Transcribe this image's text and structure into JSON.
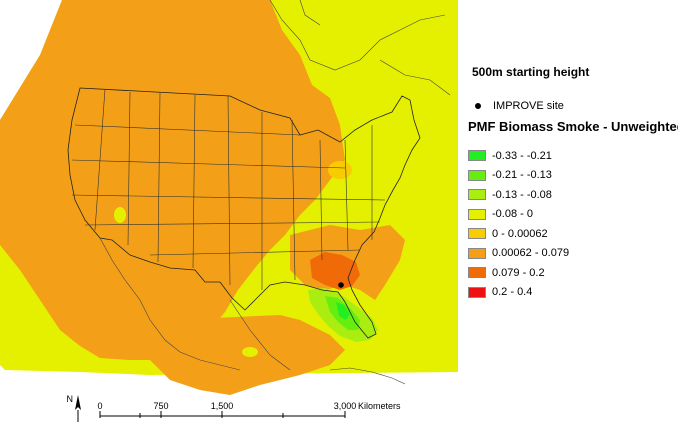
{
  "legend": {
    "height_title": "500m starting height",
    "site_label": "IMPROVE site",
    "title": "PMF Biomass Smoke - Unweighted",
    "classes": [
      {
        "label": "-0.33 - -0.21",
        "color": "#22ee22"
      },
      {
        "label": "-0.21 - -0.13",
        "color": "#66ee11"
      },
      {
        "label": "-0.13 - -0.08",
        "color": "#aaee11"
      },
      {
        "label": "-0.08 - 0",
        "color": "#e4f000"
      },
      {
        "label": "0 - 0.00062",
        "color": "#f8cc00"
      },
      {
        "label": "0.00062 - 0.079",
        "color": "#f3a018"
      },
      {
        "label": "0.079 - 0.2",
        "color": "#f06a08"
      },
      {
        "label": "0.2 - 0.4",
        "color": "#ee1111"
      }
    ]
  },
  "scale_bar": {
    "north_label": "N",
    "ticks": [
      "0",
      "750",
      "1,500",
      "3,000"
    ],
    "unit": "Kilometers"
  }
}
